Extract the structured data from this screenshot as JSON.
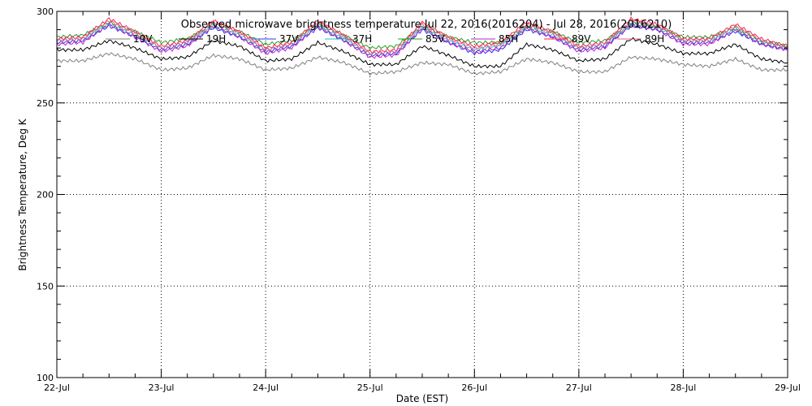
{
  "chart_data": {
    "type": "line",
    "title": "Observed microwave brightness temperature Jul 22, 2016(2016204) - Jul 28, 2016(2016210)",
    "xlabel": "Date (EST)",
    "ylabel": "Brightness Temperature, Deg K",
    "ylim": [
      100,
      300
    ],
    "yticks": [
      100,
      150,
      200,
      250,
      300
    ],
    "xlim": [
      "2016-07-22",
      "2016-07-29"
    ],
    "xticks": [
      "22-Jul",
      "23-Jul",
      "24-Jul",
      "25-Jul",
      "26-Jul",
      "27-Jul",
      "28-Jul",
      "29-Jul"
    ],
    "grid": "dotted",
    "legend_placement": "top",
    "x": [
      "2016-07-22 00:00",
      "2016-07-22 06:00",
      "2016-07-22 12:00",
      "2016-07-22 18:00",
      "2016-07-23 00:00",
      "2016-07-23 06:00",
      "2016-07-23 12:00",
      "2016-07-23 18:00",
      "2016-07-24 00:00",
      "2016-07-24 06:00",
      "2016-07-24 12:00",
      "2016-07-24 18:00",
      "2016-07-25 00:00",
      "2016-07-25 06:00",
      "2016-07-25 12:00",
      "2016-07-25 18:00",
      "2016-07-26 00:00",
      "2016-07-26 06:00",
      "2016-07-26 12:00",
      "2016-07-26 18:00",
      "2016-07-27 00:00",
      "2016-07-27 06:00",
      "2016-07-27 12:00",
      "2016-07-27 18:00",
      "2016-07-28 00:00",
      "2016-07-28 06:00",
      "2016-07-28 12:00",
      "2016-07-28 18:00",
      "2016-07-29 00:00"
    ],
    "series": [
      {
        "name": "19V",
        "color": "#808080",
        "values": [
          273,
          273,
          277,
          274,
          268,
          269,
          276,
          274,
          268,
          269,
          275,
          272,
          266,
          267,
          272,
          271,
          266,
          267,
          274,
          272,
          267,
          267,
          275,
          274,
          271,
          270,
          274,
          268,
          268
        ]
      },
      {
        "name": "19H",
        "color": "#000000",
        "values": [
          279,
          279,
          284,
          280,
          274,
          275,
          284,
          281,
          273,
          274,
          283,
          278,
          271,
          271,
          281,
          276,
          270,
          270,
          282,
          279,
          273,
          274,
          285,
          282,
          277,
          277,
          282,
          274,
          272
        ]
      },
      {
        "name": "37V",
        "color": "#3030ff",
        "values": [
          283,
          284,
          292,
          286,
          279,
          282,
          291,
          286,
          278,
          281,
          291,
          284,
          276,
          277,
          290,
          283,
          277,
          279,
          290,
          286,
          279,
          281,
          292,
          290,
          283,
          283,
          289,
          282,
          279
        ]
      },
      {
        "name": "37H",
        "color": "#20c0c0",
        "values": [
          284,
          285,
          293,
          287,
          280,
          283,
          292,
          287,
          279,
          282,
          292,
          285,
          277,
          278,
          291,
          284,
          279,
          281,
          291,
          287,
          280,
          282,
          293,
          291,
          284,
          284,
          290,
          283,
          280
        ]
      },
      {
        "name": "85V",
        "color": "#20a020",
        "values": [
          286,
          287,
          294,
          289,
          283,
          285,
          293,
          289,
          282,
          284,
          293,
          287,
          280,
          281,
          292,
          286,
          283,
          283,
          292,
          289,
          283,
          284,
          294,
          292,
          286,
          286,
          291,
          284,
          281
        ]
      },
      {
        "name": "85H",
        "color": "#c020c0",
        "values": [
          282,
          283,
          293,
          286,
          278,
          281,
          292,
          286,
          277,
          280,
          292,
          284,
          275,
          276,
          291,
          283,
          278,
          280,
          291,
          286,
          278,
          280,
          293,
          290,
          282,
          282,
          290,
          282,
          279
        ]
      },
      {
        "name": "89V",
        "color": "#ff2050",
        "values": [
          285,
          286,
          296,
          289,
          281,
          284,
          295,
          289,
          280,
          283,
          295,
          287,
          278,
          279,
          294,
          286,
          281,
          283,
          294,
          289,
          281,
          283,
          296,
          293,
          285,
          285,
          293,
          285,
          281
        ]
      },
      {
        "name": "89H",
        "color": "#e06090",
        "values": [
          284,
          285,
          295,
          288,
          280,
          283,
          294,
          288,
          279,
          282,
          294,
          286,
          277,
          278,
          293,
          285,
          280,
          282,
          293,
          288,
          280,
          282,
          295,
          292,
          284,
          284,
          292,
          284,
          280
        ]
      }
    ],
    "legend_labels": [
      "19V",
      "19H",
      "37V",
      "37H",
      "85V",
      "85H",
      "89V",
      "89H"
    ]
  }
}
